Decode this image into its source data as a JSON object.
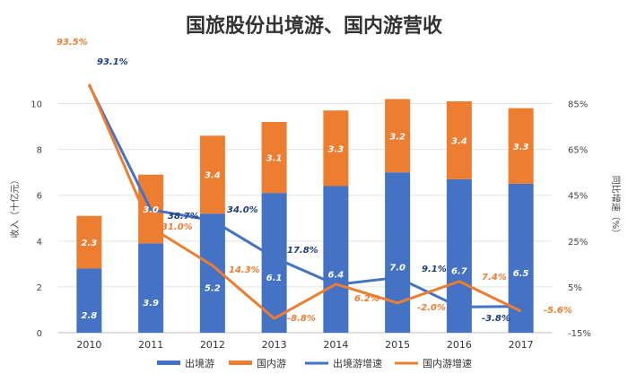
{
  "chart_data": {
    "type": "bar",
    "title": "国旅股份出境游、国内游营收",
    "categories": [
      "2010",
      "2011",
      "2012",
      "2013",
      "2014",
      "2015",
      "2016",
      "2017"
    ],
    "series": [
      {
        "name": "出境游",
        "kind": "bar",
        "axis": "left",
        "color": "#4472C4",
        "values": [
          2.8,
          3.9,
          5.2,
          6.1,
          6.4,
          7.0,
          6.7,
          6.5
        ],
        "labels": [
          "2.8",
          "3.9",
          "5.2",
          "6.1",
          "6.4",
          "7.0",
          "6.7",
          "6.5"
        ]
      },
      {
        "name": "国内游",
        "kind": "bar",
        "axis": "left",
        "color": "#ED7D31",
        "values": [
          2.3,
          3.0,
          3.4,
          3.1,
          3.3,
          3.2,
          3.4,
          3.3
        ],
        "labels": [
          "2.3",
          "3.0",
          "3.4",
          "3.1",
          "3.3",
          "3.2",
          "3.4",
          "3.3"
        ]
      },
      {
        "name": "出境游增速",
        "kind": "line",
        "axis": "right",
        "color": "#4472C4",
        "values": [
          93.1,
          38.7,
          34.0,
          17.8,
          6.0,
          9.1,
          -3.8,
          -3.5
        ],
        "labels": [
          "93.1%",
          "38.7%",
          "34.0%",
          "17.8%",
          "",
          "9.1%",
          "-3.8%",
          ""
        ]
      },
      {
        "name": "国内游增速",
        "kind": "line",
        "axis": "right",
        "color": "#ED7D31",
        "values": [
          93.5,
          31.0,
          14.3,
          -8.8,
          6.2,
          -2.0,
          7.4,
          -5.6
        ],
        "labels": [
          "93.5%",
          "31.0%",
          "14.3%",
          "-8.8%",
          "6.2%",
          "-2.0%",
          "7.4%",
          "-5.6%"
        ]
      }
    ],
    "ylabel": "收入（十亿元）",
    "y2label": "同比增速（%）",
    "ylim": [
      0,
      11
    ],
    "yticks": [
      "0",
      "2",
      "4",
      "6",
      "8",
      "10"
    ],
    "y2lim": [
      -15,
      95
    ],
    "y2ticks": [
      "-15%",
      "5%",
      "25%",
      "45%",
      "65%",
      "85%"
    ],
    "stacked": true,
    "grid": true,
    "legend_position": "bottom"
  }
}
